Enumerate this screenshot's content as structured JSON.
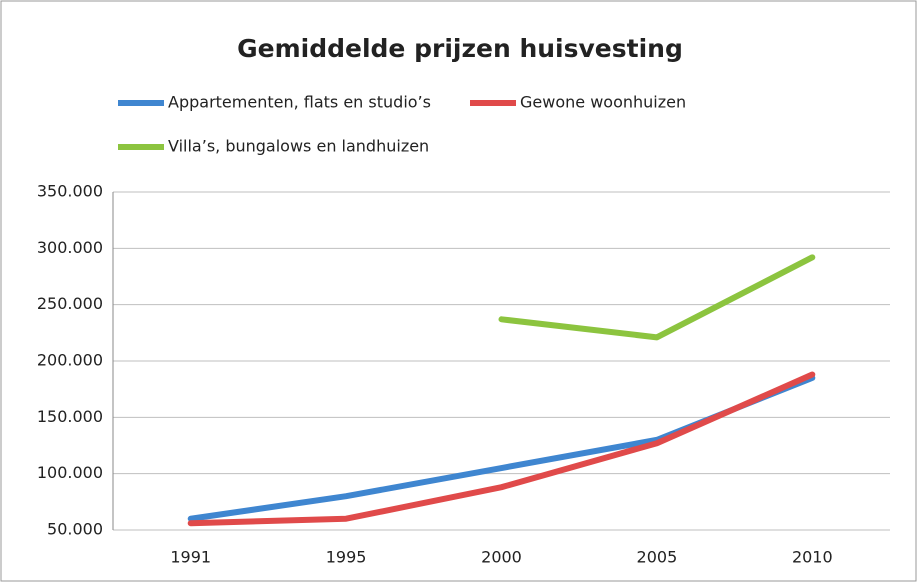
{
  "chart_data": {
    "type": "line",
    "title": "Gemiddelde prijzen huisvesting",
    "categories": [
      "1991",
      "1995",
      "2000",
      "2005",
      "2010"
    ],
    "series": [
      {
        "name": "Appartementen, flats en studio’s",
        "color": "#3f86d0",
        "values": [
          60000,
          80000,
          105000,
          130000,
          185000
        ]
      },
      {
        "name": "Gewone woonhuizen",
        "color": "#e04a4a",
        "values": [
          56000,
          60000,
          88000,
          127000,
          188000
        ]
      },
      {
        "name": "Villa’s, bungalows en landhuizen",
        "color": "#8cc43f",
        "values": [
          null,
          null,
          237000,
          221000,
          292000
        ]
      }
    ],
    "ylim": [
      50000,
      350000
    ],
    "yticks": [
      {
        "value": 50000,
        "label": "50.000"
      },
      {
        "value": 100000,
        "label": "100.000"
      },
      {
        "value": 150000,
        "label": "150.000"
      },
      {
        "value": 200000,
        "label": "200.000"
      },
      {
        "value": 250000,
        "label": "250.000"
      },
      {
        "value": 300000,
        "label": "300.000"
      },
      {
        "value": 350000,
        "label": "350.000"
      }
    ],
    "grid": true,
    "legend": "top"
  }
}
